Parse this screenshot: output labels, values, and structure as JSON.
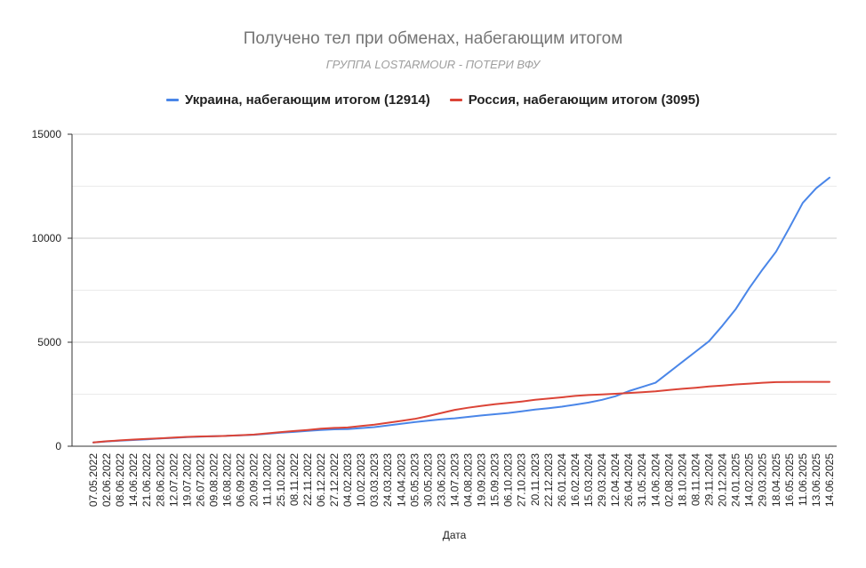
{
  "chart_data": {
    "type": "line",
    "title": "Получено тел при обменах, набегающим итогом",
    "subtitle": "ГРУППА LOSTARMOUR - ПОТЕРИ ВФУ",
    "xlabel": "Дата",
    "ylabel": "",
    "ylim": [
      0,
      15000
    ],
    "yticks": [
      0,
      5000,
      10000,
      15000
    ],
    "grid": true,
    "legend_position": "top",
    "categories": [
      "07.05.2022",
      "02.06.2022",
      "08.06.2022",
      "14.06.2022",
      "21.06.2022",
      "28.06.2022",
      "12.07.2022",
      "19.07.2022",
      "26.07.2022",
      "09.08.2022",
      "16.08.2022",
      "06.09.2022",
      "20.09.2022",
      "11.10.2022",
      "25.10.2022",
      "08.11.2022",
      "22.11.2022",
      "06.12.2022",
      "27.12.2022",
      "04.02.2023",
      "10.02.2023",
      "03.03.2023",
      "24.03.2023",
      "14.04.2023",
      "05.05.2023",
      "30.05.2023",
      "23.06.2023",
      "14.07.2023",
      "04.08.2023",
      "19.09.2023",
      "15.09.2023",
      "06.10.2023",
      "27.10.2023",
      "20.11.2023",
      "22.12.2023",
      "26.01.2024",
      "16.02.2024",
      "15.03.2024",
      "29.03.2024",
      "12.04.2024",
      "26.04.2024",
      "31.05.2024",
      "14.06.2024",
      "02.08.2024",
      "18.10.2024",
      "08.11.2024",
      "29.11.2024",
      "20.12.2024",
      "24.01.2025",
      "14.02.2025",
      "29.03.2025",
      "18.04.2025",
      "16.05.2025",
      "11.06.2025",
      "13.06.2025",
      "14.06.2025"
    ],
    "series": [
      {
        "name": "Украина, набегающим итогом (12914)",
        "color": "#4a86e8",
        "values": [
          180,
          230,
          270,
          300,
          330,
          370,
          400,
          440,
          460,
          480,
          500,
          520,
          550,
          600,
          650,
          690,
          740,
          780,
          810,
          820,
          870,
          920,
          1000,
          1080,
          1160,
          1230,
          1290,
          1340,
          1410,
          1480,
          1540,
          1600,
          1680,
          1760,
          1830,
          1900,
          2000,
          2100,
          2230,
          2400,
          2650,
          2850,
          3050,
          3550,
          4050,
          4550,
          5050,
          5800,
          6600,
          7600,
          8500,
          9350,
          10500,
          11700,
          12400,
          12914
        ]
      },
      {
        "name": "Россия, набегающим итогом (3095)",
        "color": "#db4437",
        "values": [
          180,
          240,
          280,
          320,
          350,
          380,
          420,
          450,
          470,
          480,
          500,
          530,
          560,
          620,
          680,
          730,
          780,
          840,
          880,
          900,
          970,
          1040,
          1130,
          1220,
          1310,
          1450,
          1600,
          1750,
          1850,
          1940,
          2020,
          2080,
          2150,
          2230,
          2290,
          2350,
          2420,
          2460,
          2490,
          2520,
          2560,
          2600,
          2640,
          2700,
          2760,
          2810,
          2870,
          2920,
          2970,
          3010,
          3050,
          3080,
          3090,
          3095,
          3095,
          3095
        ]
      }
    ]
  }
}
